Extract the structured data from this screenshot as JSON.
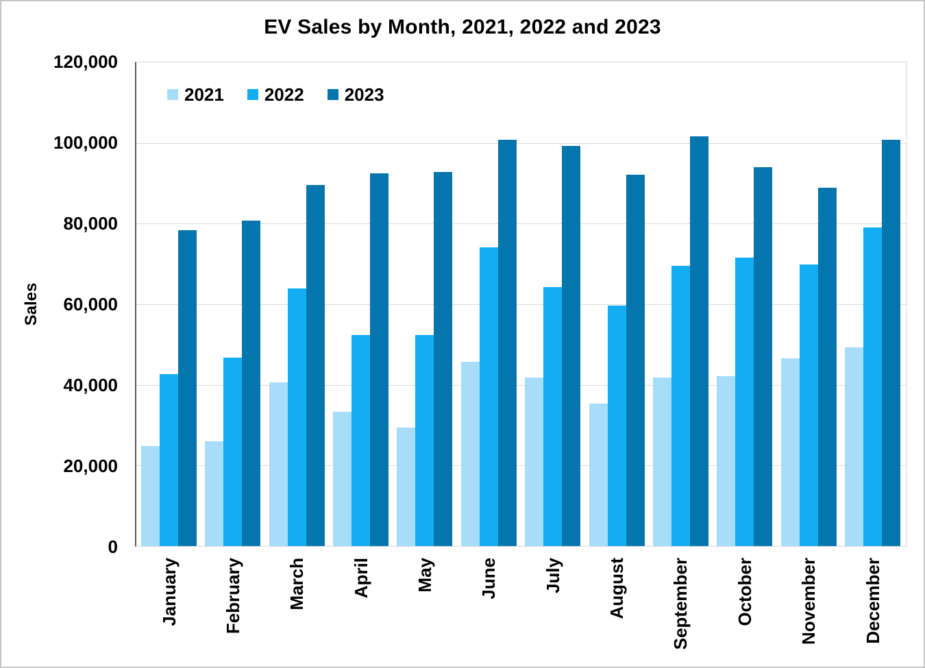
{
  "chart_data": {
    "type": "bar",
    "title": "EV Sales by Month, 2021, 2022 and 2023",
    "ylabel": "Sales",
    "xlabel": "",
    "categories": [
      "January",
      "February",
      "March",
      "April",
      "May",
      "June",
      "July",
      "August",
      "September",
      "October",
      "November",
      "December"
    ],
    "series": [
      {
        "name": "2021",
        "color": "#A7DDF8",
        "values": [
          24900,
          26000,
          40700,
          33300,
          29400,
          45700,
          41800,
          35300,
          41900,
          42200,
          46500,
          49300
        ]
      },
      {
        "name": "2022",
        "color": "#13ADF4",
        "values": [
          42600,
          46800,
          64000,
          52300,
          52300,
          74100,
          64200,
          59700,
          69600,
          71600,
          69800,
          79100
        ]
      },
      {
        "name": "2023",
        "color": "#0576AD",
        "values": [
          78400,
          80800,
          89600,
          92500,
          92800,
          100800,
          99200,
          92200,
          101700,
          94000,
          88900,
          100800
        ]
      }
    ],
    "ylim": [
      0,
      120000
    ],
    "ytick_step": 20000,
    "grid": true,
    "legend_position": "top-left-inside",
    "axis_colors": {
      "gridline": "#d9d9d9",
      "y_axis_line": "#595959",
      "x_axis_line": "#d9d9d9"
    }
  }
}
